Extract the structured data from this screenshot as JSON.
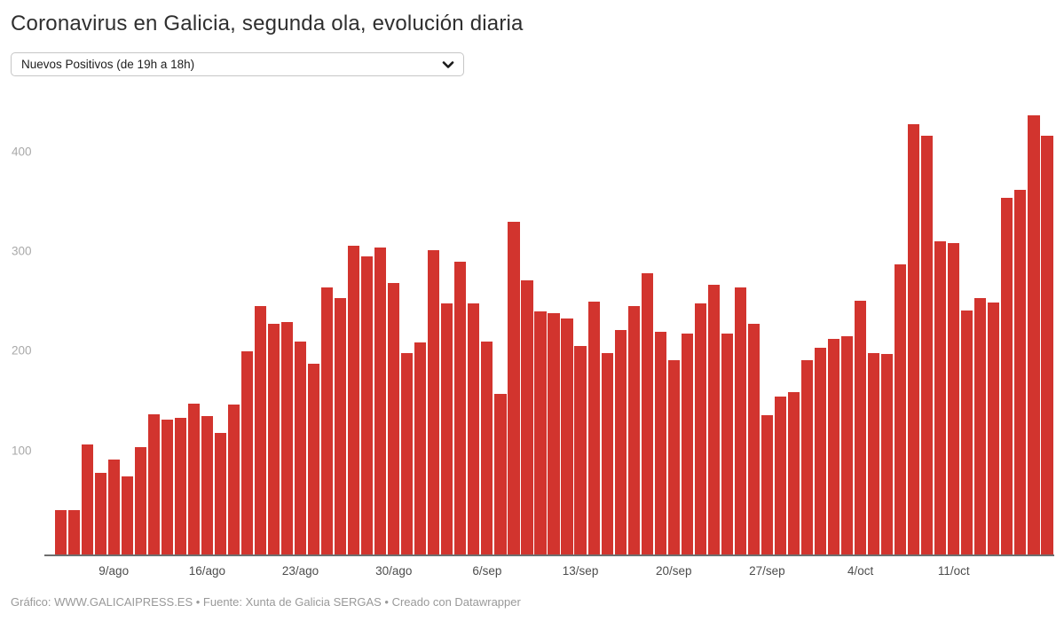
{
  "header": {
    "title": "Coronavirus en Galicia, segunda ola, evolución diaria",
    "dropdown_value": "Nuevos Positivos (de 19h a 18h)"
  },
  "footer": {
    "credit": "Gráfico: WWW.GALICAIPRESS.ES • Fuente: Xunta de Galicia SERGAS • Creado con Datawrapper"
  },
  "colors": {
    "bar": "#d2342e",
    "axis_line": "#6e6e6e",
    "x_label": "#4d4d4d",
    "y_label": "#a9a9a9",
    "title": "#2f2f2f",
    "footer": "#999999"
  },
  "chart_data": {
    "type": "bar",
    "title": "Coronavirus en Galicia, segunda ola, evolución diaria",
    "series_name": "Nuevos Positivos (de 19h a 18h)",
    "xlabel": "",
    "ylabel": "",
    "ylim": [
      0,
      455
    ],
    "grid": "none",
    "legend": "none",
    "y_ticks": [
      100,
      200,
      300,
      400
    ],
    "x_ticks": [
      {
        "label": "9/ago",
        "index": 4
      },
      {
        "label": "16/ago",
        "index": 11
      },
      {
        "label": "23/ago",
        "index": 18
      },
      {
        "label": "30/ago",
        "index": 25
      },
      {
        "label": "6/sep",
        "index": 32
      },
      {
        "label": "13/sep",
        "index": 39
      },
      {
        "label": "20/sep",
        "index": 46
      },
      {
        "label": "27/sep",
        "index": 53
      },
      {
        "label": "4/oct",
        "index": 60
      },
      {
        "label": "11/oct",
        "index": 67
      }
    ],
    "x": [
      "5/ago",
      "6/ago",
      "7/ago",
      "8/ago",
      "9/ago",
      "10/ago",
      "11/ago",
      "12/ago",
      "13/ago",
      "14/ago",
      "15/ago",
      "16/ago",
      "17/ago",
      "18/ago",
      "19/ago",
      "20/ago",
      "21/ago",
      "22/ago",
      "23/ago",
      "24/ago",
      "25/ago",
      "26/ago",
      "27/ago",
      "28/ago",
      "29/ago",
      "30/ago",
      "31/ago",
      "1/sep",
      "2/sep",
      "3/sep",
      "4/sep",
      "5/sep",
      "6/sep",
      "7/sep",
      "8/sep",
      "9/sep",
      "10/sep",
      "11/sep",
      "12/sep",
      "13/sep",
      "14/sep",
      "15/sep",
      "16/sep",
      "17/sep",
      "18/sep",
      "19/sep",
      "20/sep",
      "21/sep",
      "22/sep",
      "23/sep",
      "24/sep",
      "25/sep",
      "26/sep",
      "27/sep",
      "28/sep",
      "29/sep",
      "30/sep",
      "1/oct",
      "2/oct",
      "3/oct",
      "4/oct",
      "5/oct",
      "6/oct",
      "7/oct",
      "8/oct",
      "9/oct",
      "10/oct",
      "11/oct",
      "12/oct",
      "13/oct",
      "14/oct",
      "15/oct",
      "16/oct",
      "17/oct",
      "18/oct"
    ],
    "values": [
      45,
      45,
      111,
      83,
      96,
      79,
      109,
      142,
      136,
      138,
      152,
      140,
      123,
      151,
      205,
      250,
      232,
      234,
      215,
      192,
      269,
      258,
      311,
      300,
      309,
      273,
      203,
      214,
      306,
      253,
      295,
      253,
      215,
      162,
      335,
      276,
      245,
      243,
      238,
      210,
      255,
      203,
      226,
      250,
      283,
      224,
      196,
      223,
      253,
      272,
      223,
      269,
      232,
      141,
      159,
      164,
      196,
      208,
      217,
      220,
      256,
      203,
      202,
      292,
      433,
      421,
      315,
      313,
      246,
      258,
      254,
      359,
      367,
      442,
      421
    ]
  }
}
